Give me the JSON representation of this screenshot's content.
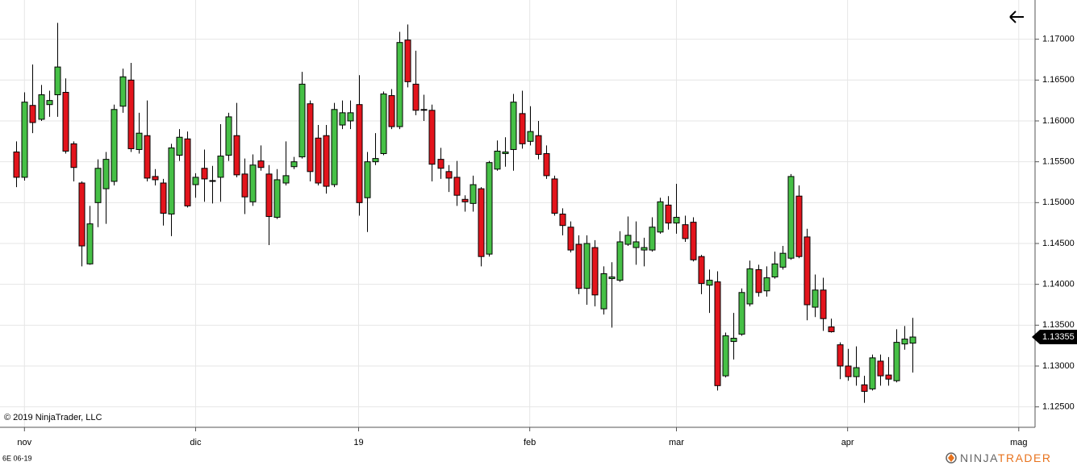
{
  "chart_data": {
    "type": "candlestick",
    "symbol": "6E 06-19",
    "copyright": "© 2019 NinjaTrader, LLC",
    "logo": [
      "NINJA",
      "TRADER"
    ],
    "last_price": 1.13355,
    "up_color": "#46c046",
    "down_color": "#e3141c",
    "grid": true,
    "xlim": [
      -2,
      125
    ],
    "xticks": [
      {
        "value": 1,
        "label": "nov"
      },
      {
        "value": 22,
        "label": "dic"
      },
      {
        "value": 42,
        "label": "19"
      },
      {
        "value": 63,
        "label": "feb"
      },
      {
        "value": 81,
        "label": "mar"
      },
      {
        "value": 102,
        "label": "apr"
      },
      {
        "value": 123,
        "label": "mag"
      }
    ],
    "ylim": [
      1.1225,
      1.1748
    ],
    "yticks": [
      {
        "value": 1.125,
        "label": "1.12500"
      },
      {
        "value": 1.13,
        "label": "1.13000"
      },
      {
        "value": 1.135,
        "label": "1.13500"
      },
      {
        "value": 1.14,
        "label": "1.14000"
      },
      {
        "value": 1.145,
        "label": "1.14500"
      },
      {
        "value": 1.15,
        "label": "1.15000"
      },
      {
        "value": 1.155,
        "label": "1.15500"
      },
      {
        "value": 1.16,
        "label": "1.16000"
      },
      {
        "value": 1.165,
        "label": "1.16500"
      },
      {
        "value": 1.17,
        "label": "1.17000"
      }
    ],
    "ohlc": [
      [
        1.1562,
        1.1575,
        1.1519,
        1.1531
      ],
      [
        1.1531,
        1.1635,
        1.1527,
        1.1623
      ],
      [
        1.1619,
        1.1669,
        1.1585,
        1.1598
      ],
      [
        1.1602,
        1.1644,
        1.16,
        1.1632
      ],
      [
        1.162,
        1.1637,
        1.1605,
        1.1625
      ],
      [
        1.1632,
        1.172,
        1.1605,
        1.1666
      ],
      [
        1.1635,
        1.1652,
        1.156,
        1.1563
      ],
      [
        1.1572,
        1.1575,
        1.1526,
        1.1543
      ],
      [
        1.1524,
        1.1526,
        1.1422,
        1.1447
      ],
      [
        1.1425,
        1.1496,
        1.1424,
        1.1474
      ],
      [
        1.15,
        1.1553,
        1.147,
        1.1542
      ],
      [
        1.1517,
        1.1562,
        1.1474,
        1.1553
      ],
      [
        1.1526,
        1.162,
        1.1521,
        1.1614
      ],
      [
        1.1618,
        1.1664,
        1.161,
        1.1654
      ],
      [
        1.165,
        1.1671,
        1.1562,
        1.1566
      ],
      [
        1.1565,
        1.161,
        1.156,
        1.1585
      ],
      [
        1.1582,
        1.1625,
        1.1526,
        1.153
      ],
      [
        1.1532,
        1.1541,
        1.1521,
        1.1528
      ],
      [
        1.1524,
        1.1529,
        1.1472,
        1.1487
      ],
      [
        1.1486,
        1.1572,
        1.1459,
        1.1567
      ],
      [
        1.1558,
        1.159,
        1.1551,
        1.158
      ],
      [
        1.1578,
        1.1587,
        1.1494,
        1.1496
      ],
      [
        1.1522,
        1.1536,
        1.1506,
        1.1531
      ],
      [
        1.1542,
        1.1565,
        1.1501,
        1.1529
      ],
      [
        1.1527,
        1.1545,
        1.1499,
        1.1526
      ],
      [
        1.1531,
        1.1596,
        1.1501,
        1.1557
      ],
      [
        1.1558,
        1.161,
        1.1551,
        1.1605
      ],
      [
        1.1582,
        1.1622,
        1.1531,
        1.1534
      ],
      [
        1.1535,
        1.1554,
        1.1486,
        1.1507
      ],
      [
        1.1501,
        1.1559,
        1.1496,
        1.1546
      ],
      [
        1.1551,
        1.157,
        1.1539,
        1.1543
      ],
      [
        1.1535,
        1.1546,
        1.1448,
        1.1483
      ],
      [
        1.1482,
        1.1541,
        1.148,
        1.1528
      ],
      [
        1.1524,
        1.1575,
        1.1521,
        1.1533
      ],
      [
        1.1544,
        1.1556,
        1.1541,
        1.155
      ],
      [
        1.1556,
        1.166,
        1.1554,
        1.1645
      ],
      [
        1.1621,
        1.1625,
        1.1526,
        1.1538
      ],
      [
        1.1579,
        1.1595,
        1.1521,
        1.1524
      ],
      [
        1.1582,
        1.1595,
        1.1511,
        1.152
      ],
      [
        1.1522,
        1.1622,
        1.1519,
        1.1614
      ],
      [
        1.1595,
        1.1625,
        1.159,
        1.161
      ],
      [
        1.16,
        1.1625,
        1.159,
        1.161
      ],
      [
        1.162,
        1.1656,
        1.1484,
        1.15
      ],
      [
        1.1506,
        1.1562,
        1.1464,
        1.155
      ],
      [
        1.155,
        1.1585,
        1.1546,
        1.1554
      ],
      [
        1.156,
        1.1636,
        1.1558,
        1.1633
      ],
      [
        1.1631,
        1.1639,
        1.159,
        1.1593
      ],
      [
        1.1593,
        1.1709,
        1.159,
        1.1696
      ],
      [
        1.1699,
        1.1718,
        1.1641,
        1.1648
      ],
      [
        1.1645,
        1.1686,
        1.1607,
        1.1613
      ],
      [
        1.1614,
        1.1632,
        1.16,
        1.1613
      ],
      [
        1.1613,
        1.162,
        1.1526,
        1.1547
      ],
      [
        1.1553,
        1.1567,
        1.1529,
        1.1542
      ],
      [
        1.1538,
        1.1546,
        1.1513,
        1.153
      ],
      [
        1.1531,
        1.1551,
        1.1496,
        1.1509
      ],
      [
        1.1504,
        1.1509,
        1.1489,
        1.1501
      ],
      [
        1.1499,
        1.1533,
        1.1489,
        1.1522
      ],
      [
        1.1517,
        1.1519,
        1.1422,
        1.1434
      ],
      [
        1.1437,
        1.1551,
        1.1434,
        1.1549
      ],
      [
        1.1541,
        1.1576,
        1.1539,
        1.1563
      ],
      [
        1.156,
        1.158,
        1.1544,
        1.1562
      ],
      [
        1.1565,
        1.1633,
        1.1539,
        1.1623
      ],
      [
        1.1609,
        1.1637,
        1.1566,
        1.1572
      ],
      [
        1.1575,
        1.1618,
        1.157,
        1.1587
      ],
      [
        1.1582,
        1.16,
        1.1553,
        1.1559
      ],
      [
        1.156,
        1.157,
        1.1529,
        1.1533
      ],
      [
        1.1529,
        1.1533,
        1.1484,
        1.1487
      ],
      [
        1.1486,
        1.1493,
        1.146,
        1.1472
      ],
      [
        1.147,
        1.1477,
        1.1439,
        1.1442
      ],
      [
        1.1449,
        1.146,
        1.1388,
        1.1395
      ],
      [
        1.1395,
        1.146,
        1.1375,
        1.145
      ],
      [
        1.1445,
        1.1454,
        1.1373,
        1.1387
      ],
      [
        1.137,
        1.1422,
        1.1363,
        1.1413
      ],
      [
        1.1407,
        1.1427,
        1.1347,
        1.1409
      ],
      [
        1.1405,
        1.1465,
        1.1403,
        1.1452
      ],
      [
        1.1449,
        1.1483,
        1.1447,
        1.146
      ],
      [
        1.1445,
        1.1477,
        1.1424,
        1.1452
      ],
      [
        1.1442,
        1.1457,
        1.1422,
        1.1445
      ],
      [
        1.1442,
        1.1482,
        1.144,
        1.147
      ],
      [
        1.1464,
        1.1506,
        1.1462,
        1.1501
      ],
      [
        1.1497,
        1.1508,
        1.1467,
        1.1475
      ],
      [
        1.1475,
        1.1523,
        1.1462,
        1.1482
      ],
      [
        1.1473,
        1.1484,
        1.1452,
        1.1456
      ],
      [
        1.1476,
        1.1482,
        1.1428,
        1.143
      ],
      [
        1.1434,
        1.1436,
        1.1388,
        1.1401
      ],
      [
        1.1399,
        1.1418,
        1.1365,
        1.1405
      ],
      [
        1.1403,
        1.1416,
        1.127,
        1.1276
      ],
      [
        1.1288,
        1.1341,
        1.1286,
        1.1337
      ],
      [
        1.133,
        1.1365,
        1.1308,
        1.1334
      ],
      [
        1.1339,
        1.1395,
        1.1337,
        1.139
      ],
      [
        1.1376,
        1.1429,
        1.1373,
        1.1419
      ],
      [
        1.1418,
        1.1424,
        1.1385,
        1.139
      ],
      [
        1.1392,
        1.1422,
        1.1385,
        1.1408
      ],
      [
        1.1409,
        1.144,
        1.1407,
        1.1425
      ],
      [
        1.1421,
        1.1447,
        1.1418,
        1.1438
      ],
      [
        1.1432,
        1.1535,
        1.143,
        1.1532
      ],
      [
        1.1508,
        1.1521,
        1.1432,
        1.1434
      ],
      [
        1.1458,
        1.1468,
        1.1356,
        1.1375
      ],
      [
        1.1372,
        1.1412,
        1.136,
        1.1393
      ],
      [
        1.1393,
        1.1408,
        1.1343,
        1.1358
      ],
      [
        1.1348,
        1.1358,
        1.1341,
        1.1342
      ],
      [
        1.1326,
        1.1329,
        1.1284,
        1.13
      ],
      [
        1.13,
        1.1321,
        1.1282,
        1.1287
      ],
      [
        1.1287,
        1.1324,
        1.1276,
        1.1298
      ],
      [
        1.1277,
        1.1288,
        1.1255,
        1.1269
      ],
      [
        1.1272,
        1.1314,
        1.127,
        1.131
      ],
      [
        1.1306,
        1.1314,
        1.1276,
        1.1288
      ],
      [
        1.1289,
        1.1311,
        1.1276,
        1.1284
      ],
      [
        1.1282,
        1.1345,
        1.128,
        1.1329
      ],
      [
        1.1327,
        1.1349,
        1.132,
        1.1333
      ],
      [
        1.1328,
        1.1359,
        1.1292,
        1.13355
      ]
    ]
  }
}
